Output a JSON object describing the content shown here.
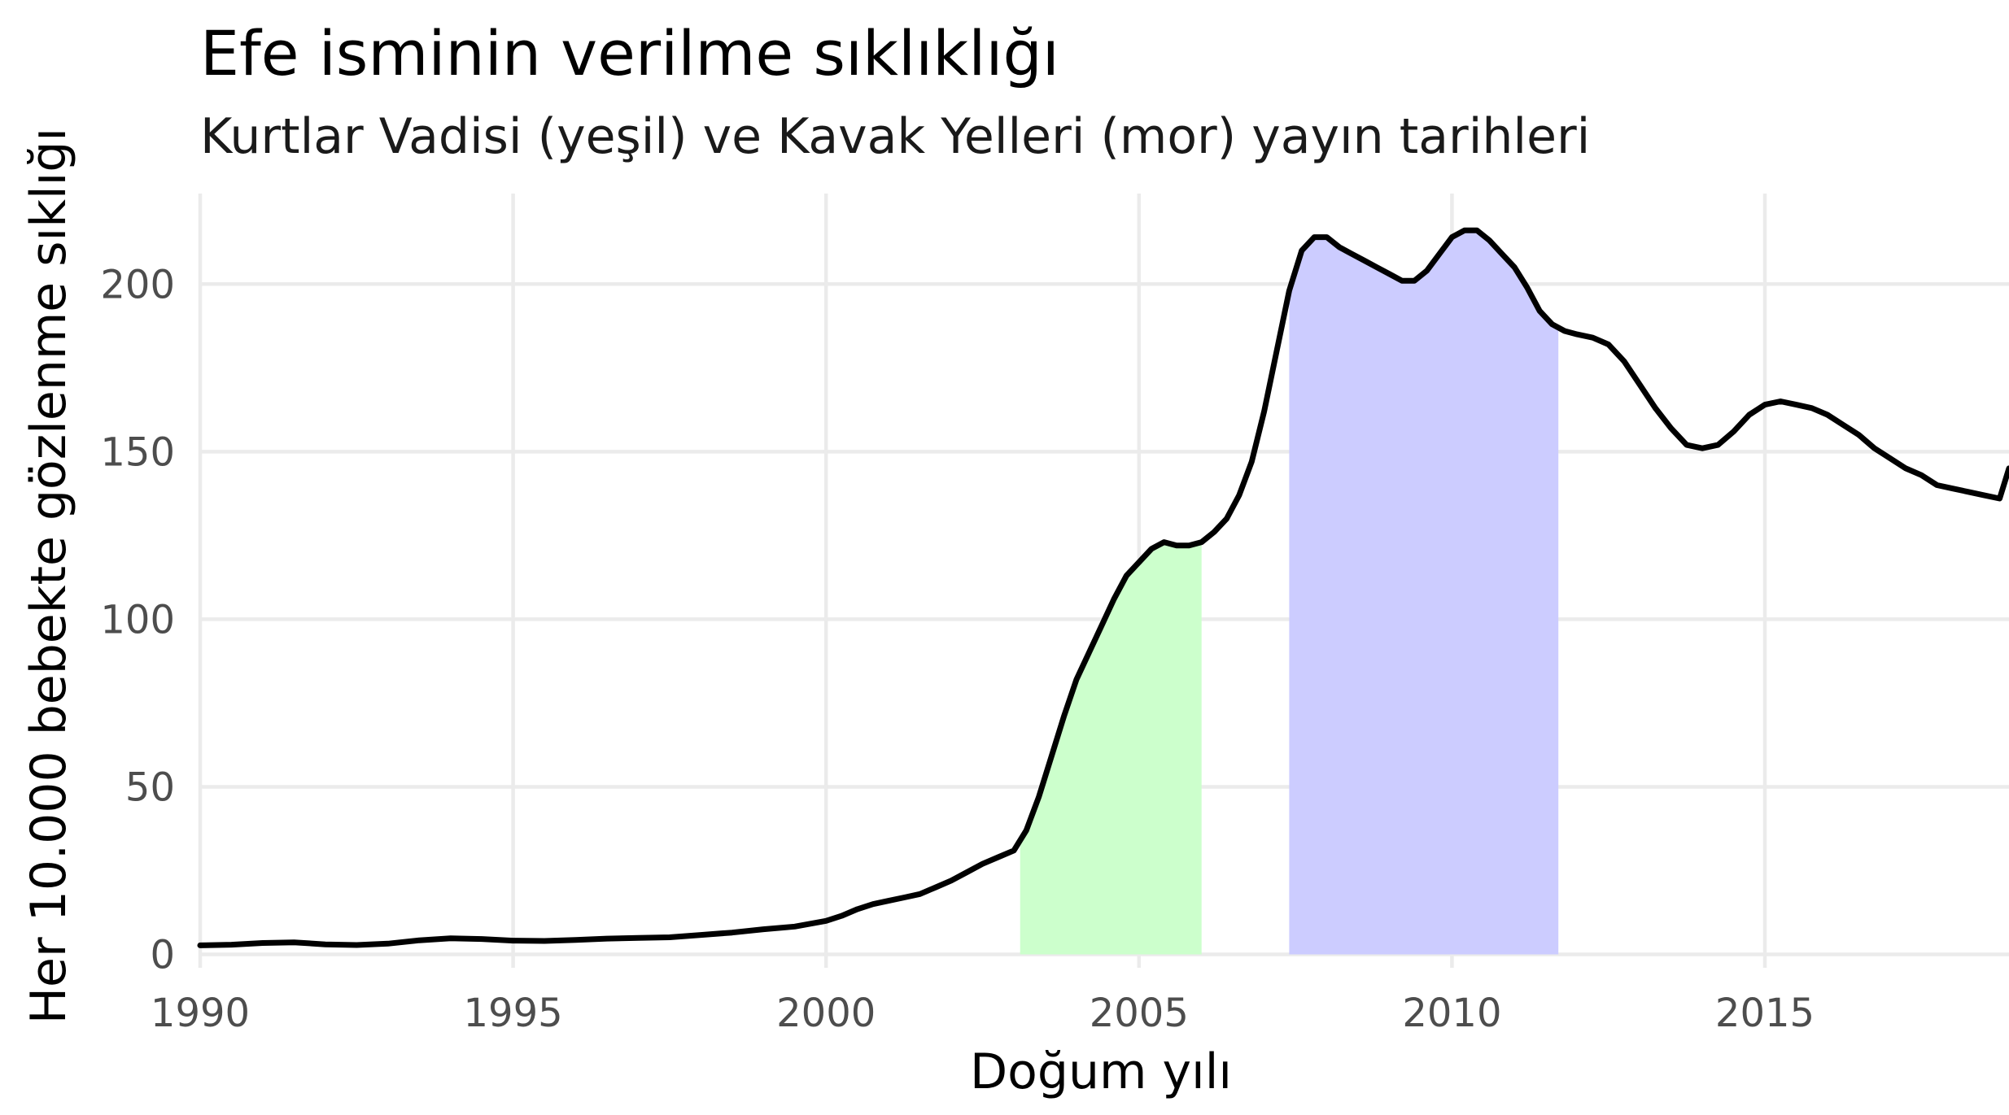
{
  "chart_data": {
    "type": "line",
    "title": "Efe isminin verilme sıklıklığı",
    "subtitle": "Kurtlar Vadisi (yeşil) ve Kavak Yelleri (mor) yayın tarihleri",
    "xlabel": "Doğum yılı",
    "ylabel": "Her 10.000 bebekte gözlenme sıklığı",
    "xlim": [
      1990,
      2018.9
    ],
    "ylim": [
      -4,
      227
    ],
    "x_ticks": [
      1990,
      1995,
      2000,
      2005,
      2010,
      2015
    ],
    "y_ticks": [
      0,
      50,
      100,
      150,
      200
    ],
    "grid": true,
    "legend": "none",
    "line_color": "#000000",
    "series": [
      {
        "x": [
          1990.0,
          1990.5,
          1991.0,
          1991.5,
          1992.0,
          1992.5,
          1993.0,
          1993.5,
          1994.0,
          1994.5,
          1995.0,
          1995.5,
          1996.0,
          1996.5,
          1997.0,
          1997.5,
          1998.0,
          1998.5,
          1999.0,
          1999.5,
          2000.0,
          2000.25,
          2000.5,
          2000.75,
          2001.0,
          2001.25,
          2001.5,
          2001.75,
          2002.0,
          2002.25,
          2002.5,
          2002.75,
          2003.0,
          2003.2,
          2003.4,
          2003.6,
          2003.8,
          2004.0,
          2004.2,
          2004.4,
          2004.6,
          2004.8,
          2005.0,
          2005.2,
          2005.4,
          2005.6,
          2005.8,
          2006.0,
          2006.2,
          2006.4,
          2006.6,
          2006.8,
          2007.0,
          2007.2,
          2007.4,
          2007.6,
          2007.8,
          2008.0,
          2008.2,
          2008.4,
          2008.6,
          2008.8,
          2009.0,
          2009.2,
          2009.4,
          2009.6,
          2009.8,
          2010.0,
          2010.2,
          2010.4,
          2010.6,
          2010.8,
          2011.0,
          2011.2,
          2011.4,
          2011.6,
          2011.8,
          2012.0,
          2012.25,
          2012.5,
          2012.75,
          2013.0,
          2013.25,
          2013.5,
          2013.75,
          2014.0,
          2014.25,
          2014.5,
          2014.75,
          2015.0,
          2015.25,
          2015.5,
          2015.75,
          2016.0,
          2016.25,
          2016.5,
          2016.75,
          2017.0,
          2017.25,
          2017.5,
          2017.75,
          2018.0,
          2018.25,
          2018.5,
          2018.75,
          2018.9
        ],
        "y": [
          2.7,
          2.9,
          3.4,
          3.6,
          3.0,
          2.8,
          3.2,
          4.2,
          4.8,
          4.6,
          4.1,
          4.0,
          4.3,
          4.7,
          4.9,
          5.1,
          5.8,
          6.5,
          7.5,
          8.3,
          10.0,
          11.5,
          13.5,
          15.0,
          16.0,
          17.0,
          18.0,
          20.0,
          22.0,
          24.5,
          27.0,
          29.0,
          31.0,
          37.0,
          47.0,
          59.0,
          71.0,
          82.0,
          90.0,
          98.0,
          106.0,
          113.0,
          117.0,
          121.0,
          123.0,
          122.0,
          122.0,
          123.0,
          126.0,
          130.0,
          137.0,
          147.0,
          162.0,
          180.0,
          198.0,
          210.0,
          214.0,
          214.0,
          211.0,
          209.0,
          207.0,
          205.0,
          203.0,
          201.0,
          201.0,
          204.0,
          209.0,
          214.0,
          216.0,
          216.0,
          213.0,
          209.0,
          205.0,
          199.0,
          192.0,
          188.0,
          186.0,
          185.0,
          184.0,
          182.0,
          177.0,
          170.0,
          163.0,
          157.0,
          152.0,
          151.0,
          152.0,
          156.0,
          161.0,
          164.0,
          165.0,
          164.0,
          163.0,
          161.0,
          158.0,
          155.0,
          151.0,
          148.0,
          145.0,
          143.0,
          140.0,
          139.0,
          138.0,
          137.0,
          136.0,
          145.0
        ]
      }
    ],
    "bands": [
      {
        "color": "#ccffcc",
        "x_start": 2003.1,
        "x_end": 2006.0
      },
      {
        "color": "#ccccff",
        "x_start": 2007.4,
        "x_end": 2011.7
      }
    ]
  }
}
